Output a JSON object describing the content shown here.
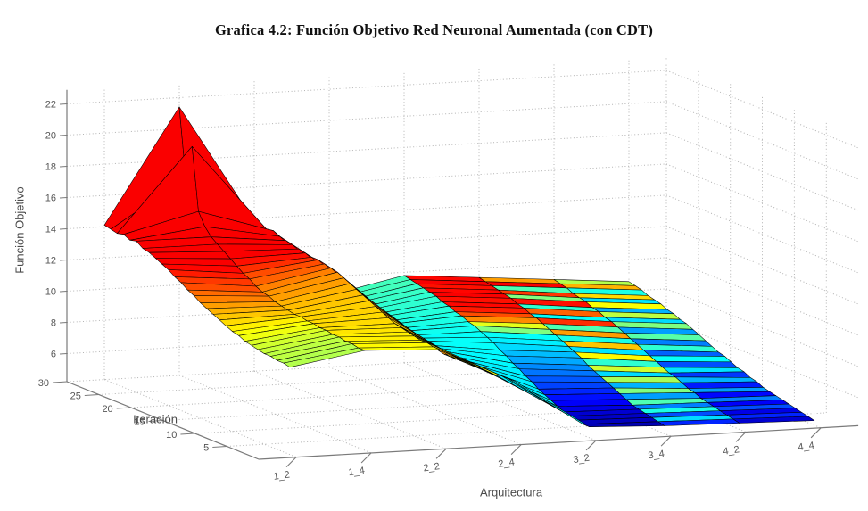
{
  "title": "Grafica 4.2: Función Objetivo Red Neuronal Aumentada (con CDT)",
  "axes": {
    "z": {
      "label": "Función Objetivo",
      "ticks": [
        6,
        8,
        10,
        12,
        14,
        16,
        18,
        20,
        22
      ]
    },
    "y": {
      "label": "Iteración",
      "ticks": [
        5,
        10,
        15,
        20,
        25,
        30
      ],
      "min": 0,
      "max": 30
    },
    "x": {
      "label": "Arquitectura",
      "ticks": [
        "1_2",
        "1_4",
        "2_2",
        "2_4",
        "3_2",
        "3_4",
        "4_2",
        "4_4"
      ]
    }
  },
  "chart_data": {
    "type": "surface",
    "title": "Grafica 4.2: Función Objetivo Red Neuronal Aumentada (con CDT)",
    "xlabel": "Arquitectura",
    "ylabel": "Iteración",
    "zlabel": "Función Objetivo",
    "x_categories": [
      "1_2",
      "1_4",
      "2_2",
      "2_4",
      "3_2",
      "3_4",
      "4_2",
      "4_4"
    ],
    "row_order": "rows run from iteration 30 (back, at vertical axis) to iteration 1 (front)",
    "iterations": 30,
    "zlim": [
      4.2,
      22.9
    ],
    "grid": true,
    "colormap": "jet",
    "caxis": [
      4.4,
      14.4
    ],
    "z": [
      [
        14.1,
        14.0,
        13.9,
        14.0,
        13.8,
        13.9,
        13.6,
        13.5,
        13.3,
        13.1,
        12.9,
        12.6,
        12.4,
        12.1,
        11.9,
        11.6,
        11.4,
        11.2,
        11.0,
        10.8,
        10.6,
        10.5,
        10.3,
        10.2,
        10.1,
        10.0,
        10.0,
        9.9,
        9.9,
        9.8
      ],
      [
        21.4,
        17.0,
        19.2,
        15.2,
        14.4,
        13.9,
        13.6,
        13.3,
        13.0,
        12.7,
        12.4,
        12.2,
        11.9,
        11.7,
        11.6,
        11.4,
        11.3,
        11.2,
        11.1,
        11.1,
        11.0,
        11.0,
        10.9,
        10.9,
        10.8,
        10.8,
        10.7,
        10.7,
        10.6,
        10.6
      ],
      [
        13.8,
        13.7,
        13.6,
        13.7,
        13.5,
        13.4,
        13.3,
        13.2,
        13.1,
        13.0,
        13.0,
        12.9,
        12.8,
        12.7,
        12.5,
        12.3,
        12.1,
        11.9,
        11.7,
        11.5,
        11.3,
        11.1,
        10.9,
        10.8,
        10.7,
        10.6,
        10.5,
        10.5,
        10.4,
        10.4
      ],
      [
        8.8,
        8.8,
        8.7,
        8.7,
        8.6,
        8.6,
        8.5,
        8.5,
        8.4,
        8.4,
        8.3,
        8.3,
        8.2,
        8.2,
        8.2,
        8.1,
        8.1,
        8.1,
        8.0,
        8.0,
        8.0,
        8.0,
        8.0,
        8.0,
        8.0,
        8.0,
        8.0,
        8.1,
        8.1,
        8.1
      ],
      [
        9.8,
        9.7,
        9.6,
        9.5,
        9.4,
        9.3,
        9.1,
        9.0,
        8.8,
        8.7,
        8.5,
        8.4,
        8.2,
        8.0,
        7.8,
        7.5,
        7.3,
        7.0,
        6.8,
        6.5,
        6.3,
        6.0,
        5.8,
        5.6,
        5.4,
        5.2,
        5.1,
        5.0,
        4.9,
        4.9
      ],
      [
        9.4,
        9.3,
        9.2,
        9.1,
        9.0,
        8.9,
        8.7,
        8.6,
        8.4,
        8.3,
        8.1,
        7.9,
        7.7,
        7.5,
        7.3,
        7.1,
        6.9,
        6.6,
        6.4,
        6.2,
        6.0,
        5.8,
        5.6,
        5.4,
        5.2,
        5.1,
        5.0,
        4.9,
        4.8,
        4.7
      ],
      [
        9.0,
        8.9,
        8.8,
        8.6,
        8.5,
        8.4,
        8.2,
        8.1,
        7.9,
        7.8,
        7.6,
        7.4,
        7.2,
        7.0,
        6.8,
        6.6,
        6.4,
        6.2,
        6.0,
        5.9,
        5.7,
        5.5,
        5.4,
        5.2,
        5.1,
        5.0,
        4.9,
        4.8,
        4.7,
        4.6
      ],
      [
        8.6,
        8.5,
        8.4,
        8.2,
        8.1,
        8.0,
        7.8,
        7.7,
        7.5,
        7.4,
        7.2,
        7.0,
        6.8,
        6.6,
        6.4,
        6.3,
        6.1,
        5.9,
        5.8,
        5.6,
        5.5,
        5.3,
        5.2,
        5.1,
        5.0,
        4.9,
        4.8,
        4.7,
        4.6,
        4.5
      ]
    ],
    "color_index": [
      null,
      null,
      null,
      null,
      [
        0.87,
        0.88,
        0.86,
        0.87,
        0.88,
        0.86,
        0.87,
        0.85,
        0.8,
        0.74,
        0.6,
        0.5,
        null,
        null,
        null,
        null,
        null,
        null,
        null,
        null,
        null,
        null,
        null,
        null,
        null,
        null,
        null,
        null,
        null,
        null
      ],
      [
        0.72,
        0.88,
        0.45,
        0.82,
        0.5,
        0.86,
        0.42,
        0.78,
        0.38,
        0.83,
        0.45,
        0.72,
        0.4,
        0.68,
        0.35,
        0.63,
        0.42,
        0.58,
        0.34,
        0.54,
        0.3,
        0.5,
        0.28,
        0.45,
        0.25,
        0.4,
        0.2,
        0.34,
        0.16,
        0.3
      ],
      [
        0.55,
        0.7,
        0.4,
        0.66,
        0.35,
        0.62,
        0.3,
        0.56,
        0.34,
        0.5,
        0.28,
        0.46,
        0.25,
        0.42,
        0.22,
        0.38,
        0.2,
        0.35,
        0.18,
        0.3,
        0.15,
        0.28,
        0.13,
        0.25,
        0.12,
        0.2,
        0.1,
        0.16,
        0.08,
        0.1
      ],
      null
    ]
  },
  "style": {
    "background": "#ffffff",
    "axis_color": "#7a7a7a",
    "tick_label_color": "#555555",
    "grid_color": "#b3b3b3",
    "mesh_edge_color": "#000000",
    "title_color": "#111111",
    "axis_name_color": "#4a4a4a"
  }
}
